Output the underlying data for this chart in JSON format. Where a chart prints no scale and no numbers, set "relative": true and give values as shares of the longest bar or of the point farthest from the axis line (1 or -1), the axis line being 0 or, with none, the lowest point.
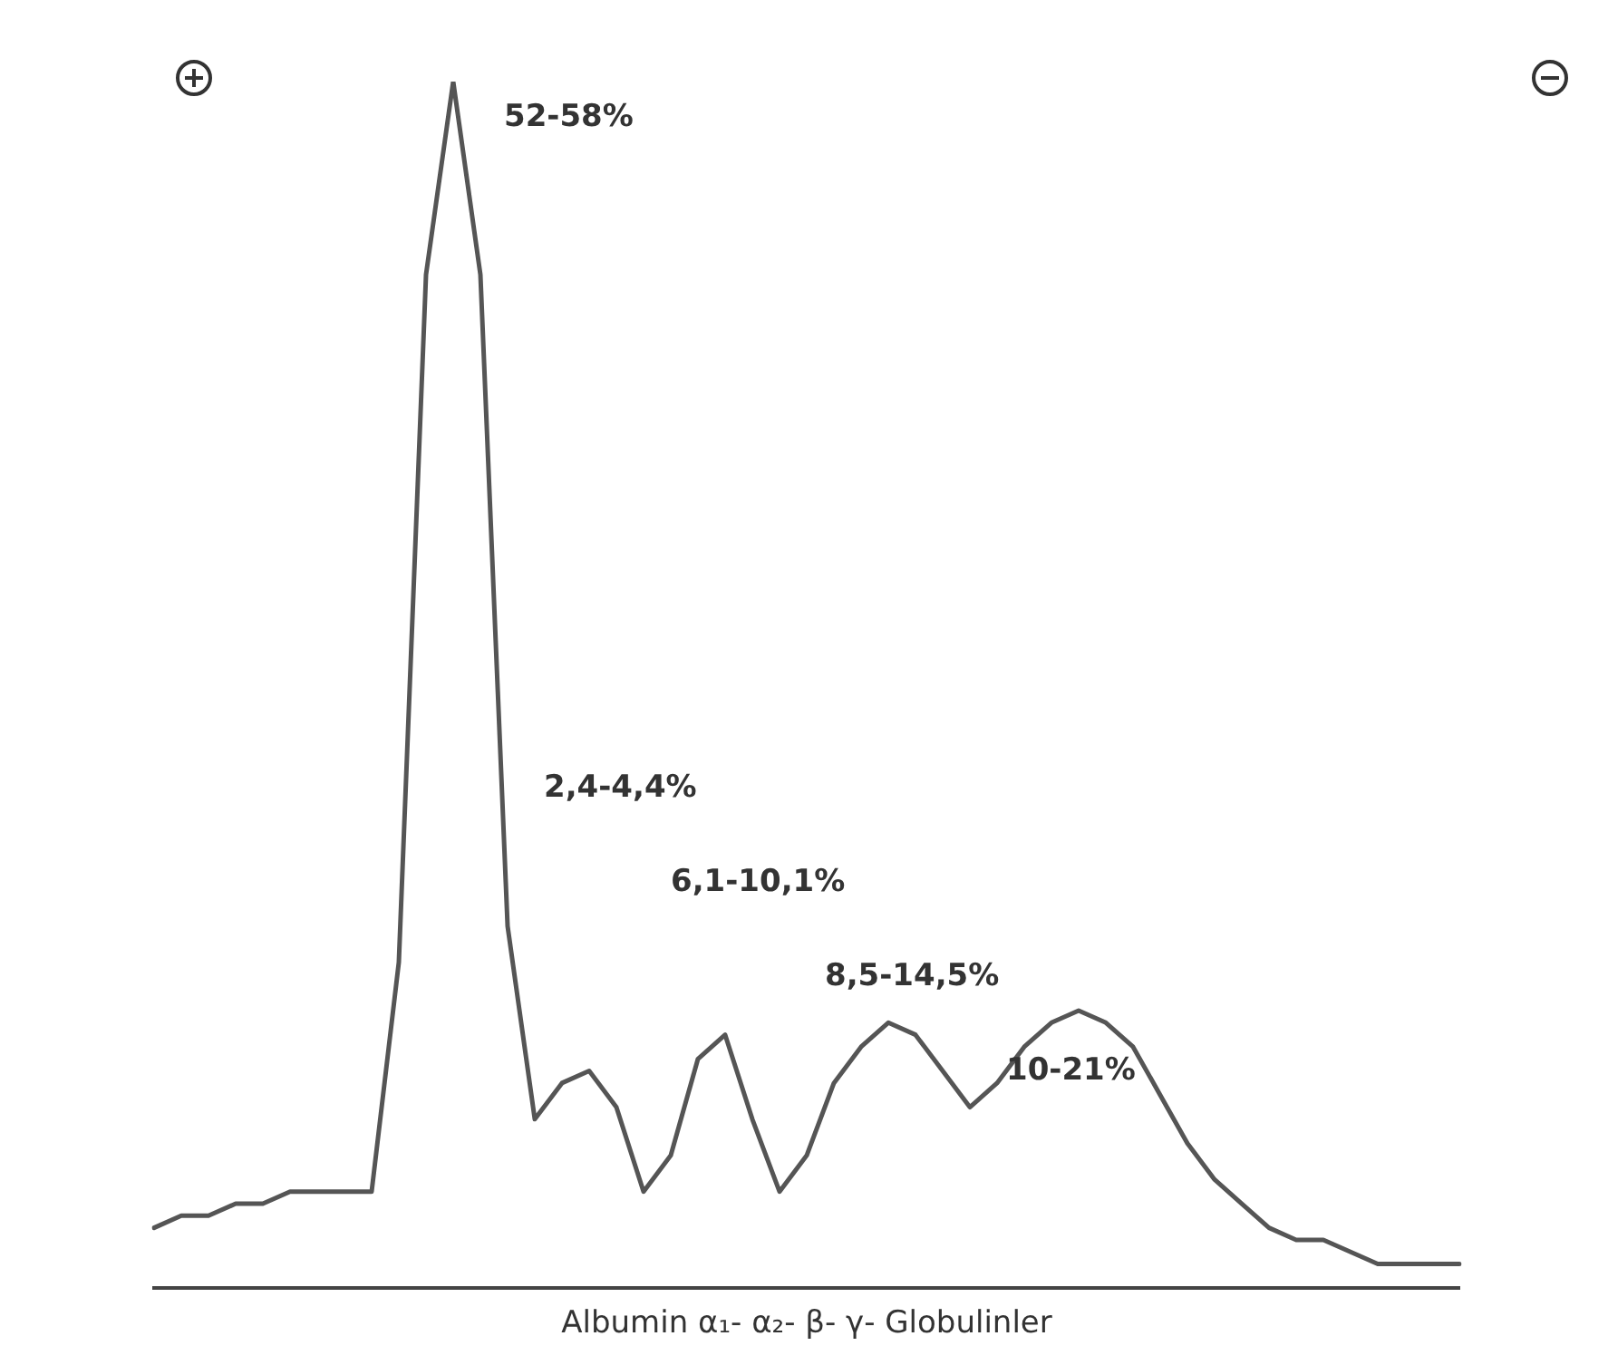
{
  "chart_data": {
    "type": "line",
    "relative": true,
    "xlabel": "Albumin α₁- α₂- β- γ- Globulinler",
    "categories": [
      null,
      null,
      null,
      null,
      null,
      null,
      null,
      null,
      null,
      null,
      null,
      null,
      null,
      null,
      null,
      null,
      null,
      null,
      null,
      null,
      null,
      null,
      null,
      null,
      null,
      null,
      null,
      null,
      null,
      null,
      null,
      null,
      null,
      null,
      null,
      null,
      null,
      null,
      null,
      null,
      null,
      null,
      null,
      null,
      null,
      null,
      null,
      null,
      null
    ],
    "series": [
      {
        "color": "#555555",
        "values": [
          0.05,
          0.06,
          0.06,
          0.07,
          0.07,
          0.08,
          0.08,
          0.08,
          0.08,
          0.27,
          0.84,
          1,
          0.84,
          0.3,
          0.14,
          0.17,
          0.18,
          0.15,
          0.08,
          0.11,
          0.19,
          0.21,
          0.14,
          0.08,
          0.11,
          0.17,
          0.2,
          0.22,
          0.21,
          0.18,
          0.15,
          0.17,
          0.2,
          0.22,
          0.23,
          0.22,
          0.2,
          0.16,
          0.12,
          0.09,
          0.07,
          0.05,
          0.04,
          0.04,
          0.03,
          0.02,
          0.02,
          0.02,
          0.02
        ]
      }
    ],
    "annotations": [
      "52-58%",
      "2,4-4,4%",
      "6,1-10,1%",
      "8,5-14,5%",
      "10-21%"
    ],
    "marker": "none",
    "grid": false,
    "legend": false,
    "tick_labels": false
  }
}
